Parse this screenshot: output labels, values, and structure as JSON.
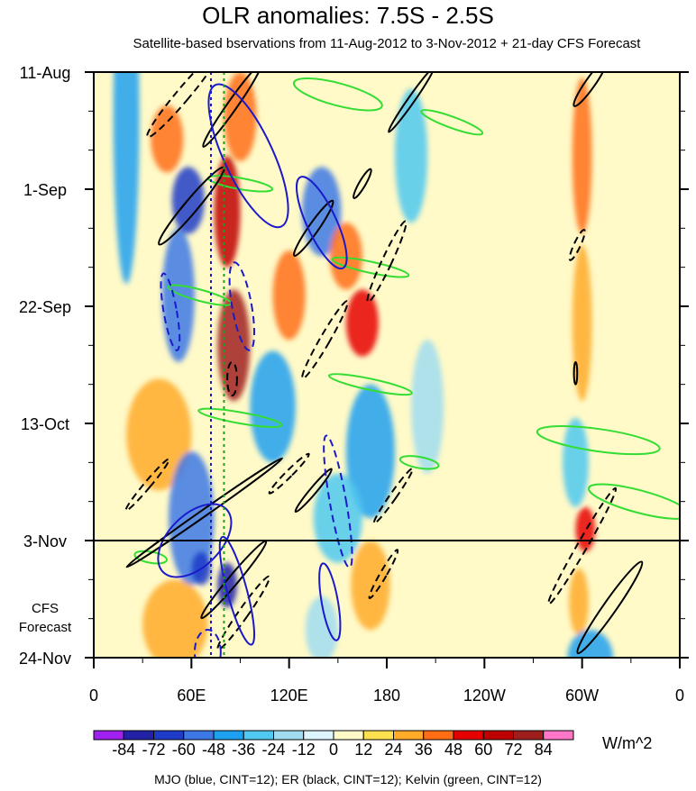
{
  "chart_data": {
    "type": "heatmap",
    "title": "OLR anomalies: 7.5S - 2.5S",
    "subtitle": "Satellite-based bservations from 11-Aug-2012 to 3-Nov-2012 + 21-day CFS Forecast",
    "x_ticks": [
      {
        "label": "0",
        "lon": 0
      },
      {
        "label": "60E",
        "lon": 60
      },
      {
        "label": "120E",
        "lon": 120
      },
      {
        "label": "180",
        "lon": 180
      },
      {
        "label": "120W",
        "lon": 240
      },
      {
        "label": "60W",
        "lon": 300
      },
      {
        "label": "0",
        "lon": 360
      }
    ],
    "y_ticks": [
      {
        "label": "11-Aug",
        "day": 0
      },
      {
        "label": "1-Sep",
        "day": 21
      },
      {
        "label": "22-Sep",
        "day": 42
      },
      {
        "label": "13-Oct",
        "day": 63
      },
      {
        "label": "3-Nov",
        "day": 84
      },
      {
        "label": "24-Nov",
        "day": 105
      }
    ],
    "xlim": [
      0,
      360
    ],
    "ylim_days": [
      0,
      105
    ],
    "forecast_start_day": 84,
    "forecast_label": [
      "CFS",
      "Forecast"
    ],
    "reference_lines_lon": [
      72,
      80
    ],
    "colorbar": {
      "levels": [
        -84,
        -72,
        -60,
        -48,
        -36,
        -24,
        -12,
        0,
        12,
        24,
        36,
        48,
        60,
        72,
        84
      ],
      "labels": [
        "-84",
        "-72",
        "-60",
        "-48",
        "-36",
        "-24",
        "-12",
        "0",
        "12",
        "24",
        "36",
        "48",
        "60",
        "72",
        "84"
      ],
      "colors": [
        "#a020f0",
        "#2222a8",
        "#1e3cc8",
        "#3c78e6",
        "#1ea0f0",
        "#50c8f0",
        "#a0dcf0",
        "#dcf5ff",
        "#fffac8",
        "#ffe050",
        "#ffaa28",
        "#ff6e14",
        "#e60000",
        "#be0000",
        "#a01e1e",
        "#ff78c8"
      ],
      "units": "W/m^2"
    },
    "overlay_legend": "MJO (blue, CINT=12); ER (black, CINT=12); Kelvin (green, CINT=12)",
    "anomaly_features": [
      {
        "lon": 20,
        "day": 8,
        "value": -40,
        "dlon": 8,
        "dday": 30
      },
      {
        "lon": 45,
        "day": 12,
        "value": 40,
        "dlon": 10,
        "dday": 6
      },
      {
        "lon": 58,
        "day": 23,
        "value": -70,
        "dlon": 10,
        "dday": 6
      },
      {
        "lon": 52,
        "day": 40,
        "value": -50,
        "dlon": 10,
        "dday": 12
      },
      {
        "lon": 40,
        "day": 65,
        "value": 30,
        "dlon": 20,
        "dday": 10
      },
      {
        "lon": 60,
        "day": 80,
        "value": -60,
        "dlon": 14,
        "dday": 12
      },
      {
        "lon": 82,
        "day": 25,
        "value": 60,
        "dlon": 8,
        "dday": 10
      },
      {
        "lon": 86,
        "day": 49,
        "value": 72,
        "dlon": 10,
        "dday": 10
      },
      {
        "lon": 90,
        "day": 8,
        "value": 40,
        "dlon": 10,
        "dday": 8
      },
      {
        "lon": 82,
        "day": 92,
        "value": -84,
        "dlon": 6,
        "dday": 4
      },
      {
        "lon": 66,
        "day": 89,
        "value": -72,
        "dlon": 6,
        "dday": 3
      },
      {
        "lon": 50,
        "day": 99,
        "value": 30,
        "dlon": 20,
        "dday": 8
      },
      {
        "lon": 110,
        "day": 60,
        "value": -40,
        "dlon": 14,
        "dday": 10
      },
      {
        "lon": 120,
        "day": 40,
        "value": 36,
        "dlon": 10,
        "dday": 8
      },
      {
        "lon": 140,
        "day": 25,
        "value": -60,
        "dlon": 12,
        "dday": 8
      },
      {
        "lon": 155,
        "day": 33,
        "value": 40,
        "dlon": 10,
        "dday": 6
      },
      {
        "lon": 165,
        "day": 45,
        "value": 50,
        "dlon": 10,
        "dday": 6
      },
      {
        "lon": 170,
        "day": 68,
        "value": -40,
        "dlon": 15,
        "dday": 12
      },
      {
        "lon": 150,
        "day": 80,
        "value": -36,
        "dlon": 15,
        "dday": 8
      },
      {
        "lon": 170,
        "day": 92,
        "value": 30,
        "dlon": 12,
        "dday": 8
      },
      {
        "lon": 140,
        "day": 100,
        "value": -24,
        "dlon": 10,
        "dday": 6
      },
      {
        "lon": 195,
        "day": 15,
        "value": -30,
        "dlon": 10,
        "dday": 12
      },
      {
        "lon": 205,
        "day": 60,
        "value": -24,
        "dlon": 10,
        "dday": 12
      },
      {
        "lon": 300,
        "day": 15,
        "value": 36,
        "dlon": 6,
        "dday": 14
      },
      {
        "lon": 300,
        "day": 45,
        "value": 30,
        "dlon": 6,
        "dday": 14
      },
      {
        "lon": 296,
        "day": 70,
        "value": -30,
        "dlon": 8,
        "dday": 8
      },
      {
        "lon": 302,
        "day": 82,
        "value": 48,
        "dlon": 6,
        "dday": 4
      },
      {
        "lon": 298,
        "day": 95,
        "value": 30,
        "dlon": 6,
        "dday": 6
      },
      {
        "lon": 305,
        "day": 105,
        "value": -40,
        "dlon": 14,
        "dday": 5
      }
    ],
    "mjo_contours": [
      {
        "lon": 95,
        "day": 15,
        "rlon": 15,
        "rday": 14,
        "angle": -25,
        "dashed": false
      },
      {
        "lon": 140,
        "day": 27,
        "rlon": 9,
        "rday": 9,
        "angle": -25,
        "dashed": false
      },
      {
        "lon": 47,
        "day": 43,
        "rlon": 4,
        "rday": 7,
        "angle": -10,
        "dashed": true
      },
      {
        "lon": 91,
        "day": 42,
        "rlon": 6,
        "rday": 8,
        "angle": -10,
        "dashed": true
      },
      {
        "lon": 150,
        "day": 77,
        "rlon": 5,
        "rday": 12,
        "angle": -10,
        "dashed": true
      },
      {
        "lon": 62,
        "day": 84,
        "rlon": 16,
        "rday": 8,
        "angle": 45,
        "dashed": false
      },
      {
        "lon": 88,
        "day": 93,
        "rlon": 6,
        "rday": 10,
        "angle": -15,
        "dashed": false
      },
      {
        "lon": 145,
        "day": 95,
        "rlon": 5,
        "rday": 7,
        "angle": -10,
        "dashed": false
      },
      {
        "lon": 70,
        "day": 104,
        "rlon": 8,
        "rday": 4,
        "angle": 0,
        "dashed": true
      }
    ],
    "er_contours": [
      {
        "lon": 55,
        "day": 4,
        "rlon": 4,
        "rday": 10,
        "angle": 40,
        "dashed": true
      },
      {
        "lon": 85,
        "day": 6,
        "rlon": 3,
        "rday": 9,
        "angle": 35,
        "dashed": false
      },
      {
        "lon": 60,
        "day": 24,
        "rlon": 4,
        "rday": 9,
        "angle": 40,
        "dashed": false
      },
      {
        "lon": 135,
        "day": 28,
        "rlon": 3,
        "rday": 6,
        "angle": 35,
        "dashed": false
      },
      {
        "lon": 165,
        "day": 20,
        "rlon": 2,
        "rday": 3,
        "angle": 30,
        "dashed": false
      },
      {
        "lon": 180,
        "day": 34,
        "rlon": 3,
        "rday": 8,
        "angle": 25,
        "dashed": true
      },
      {
        "lon": 142,
        "day": 48,
        "rlon": 3,
        "rday": 8,
        "angle": 30,
        "dashed": true
      },
      {
        "lon": 85,
        "day": 55,
        "rlon": 3,
        "rday": 3,
        "angle": 0,
        "dashed": true
      },
      {
        "lon": 68,
        "day": 79,
        "rlon": 2,
        "rday": 17,
        "angle": 55,
        "dashed": false
      },
      {
        "lon": 33,
        "day": 74,
        "rlon": 2,
        "rday": 6,
        "angle": 40,
        "dashed": true
      },
      {
        "lon": 120,
        "day": 72,
        "rlon": 2,
        "rday": 5,
        "angle": 45,
        "dashed": true
      },
      {
        "lon": 135,
        "day": 75,
        "rlon": 2,
        "rday": 5,
        "angle": 40,
        "dashed": false
      },
      {
        "lon": 184,
        "day": 76,
        "rlon": 2,
        "rday": 6,
        "angle": 35,
        "dashed": true
      },
      {
        "lon": 86,
        "day": 91,
        "rlon": 3,
        "rday": 9,
        "angle": 40,
        "dashed": false
      },
      {
        "lon": 92,
        "day": 97,
        "rlon": 3,
        "rday": 8,
        "angle": 35,
        "dashed": true
      },
      {
        "lon": 178,
        "day": 90,
        "rlon": 2,
        "rday": 5,
        "angle": 30,
        "dashed": true
      },
      {
        "lon": 195,
        "day": 5,
        "rlon": 2,
        "rday": 7,
        "angle": 35,
        "dashed": false
      },
      {
        "lon": 305,
        "day": 2,
        "rlon": 3,
        "rday": 5,
        "angle": 35,
        "dashed": false
      },
      {
        "lon": 297,
        "day": 31,
        "rlon": 2,
        "rday": 3,
        "angle": 25,
        "dashed": true
      },
      {
        "lon": 296,
        "day": 54,
        "rlon": 1,
        "rday": 2,
        "angle": 0,
        "dashed": false
      },
      {
        "lon": 300,
        "day": 85,
        "rlon": 3,
        "rday": 12,
        "angle": 30,
        "dashed": true
      },
      {
        "lon": 317,
        "day": 96,
        "rlon": 4,
        "rday": 10,
        "angle": 35,
        "dashed": false
      }
    ],
    "kelvin_contours": [
      {
        "lon": 150,
        "day": 4,
        "rlon": 28,
        "rday": 2,
        "angle": 15
      },
      {
        "lon": 220,
        "day": 9,
        "rlon": 20,
        "rday": 1,
        "angle": 20
      },
      {
        "lon": 90,
        "day": 20,
        "rlon": 20,
        "rday": 1,
        "angle": 10
      },
      {
        "lon": 170,
        "day": 35,
        "rlon": 24,
        "rday": 1,
        "angle": 12
      },
      {
        "lon": 65,
        "day": 40,
        "rlon": 20,
        "rday": 1,
        "angle": 15
      },
      {
        "lon": 170,
        "day": 56,
        "rlon": 26,
        "rday": 1,
        "angle": 12
      },
      {
        "lon": 90,
        "day": 62,
        "rlon": 26,
        "rday": 1,
        "angle": 10
      },
      {
        "lon": 200,
        "day": 70,
        "rlon": 12,
        "rday": 1,
        "angle": 10
      },
      {
        "lon": 310,
        "day": 66,
        "rlon": 38,
        "rday": 2,
        "angle": 8
      },
      {
        "lon": 335,
        "day": 77,
        "rlon": 32,
        "rday": 2,
        "angle": 15
      },
      {
        "lon": 35,
        "day": 87,
        "rlon": 10,
        "rday": 1,
        "angle": 10
      }
    ]
  }
}
